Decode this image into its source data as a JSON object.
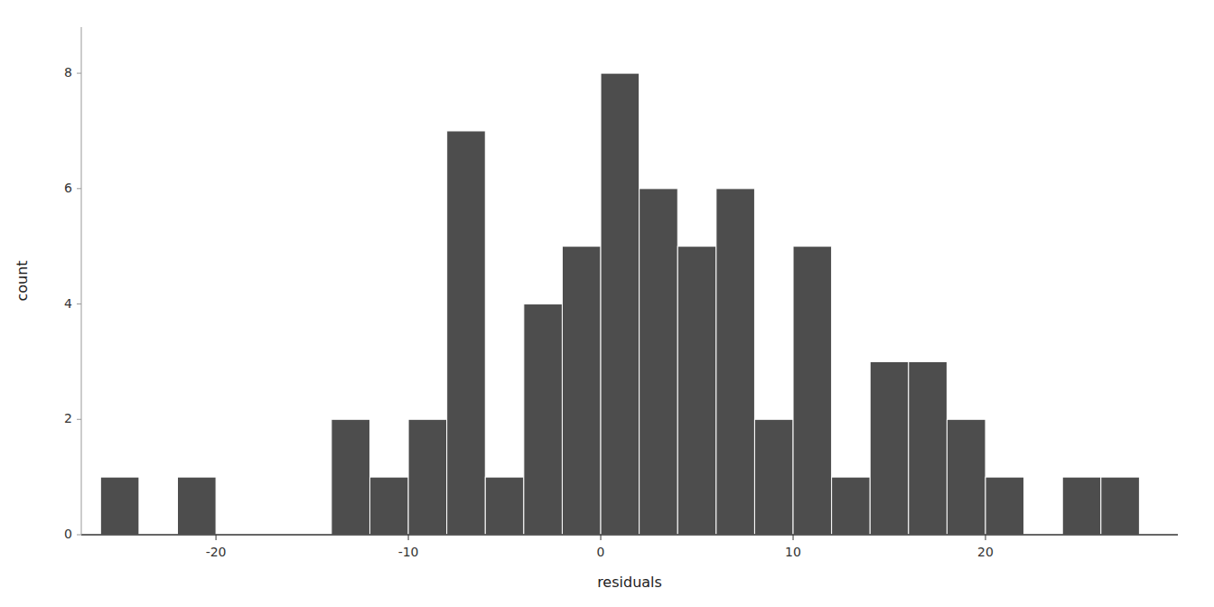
{
  "chart_data": {
    "type": "histogram",
    "xlabel": "residuals",
    "ylabel": "count",
    "color": "#4d4d4d",
    "bins": [
      -26,
      -24,
      -22,
      -20,
      -18,
      -16,
      -14,
      -12,
      -10,
      -8,
      -6,
      -4,
      -2,
      0,
      2,
      4,
      6,
      8,
      10,
      12,
      14,
      16,
      18,
      20,
      22,
      24,
      26,
      28,
      30
    ],
    "values": [
      1,
      0,
      1,
      0,
      0,
      0,
      2,
      1,
      2,
      7,
      1,
      4,
      5,
      8,
      6,
      5,
      6,
      2,
      5,
      1,
      3,
      3,
      2,
      1,
      0,
      1,
      1,
      0
    ],
    "xlim": [
      -27,
      30
    ],
    "ylim": [
      0,
      8.8
    ],
    "xticks": [
      -20,
      -10,
      0,
      10,
      20
    ],
    "yticks": [
      0,
      2,
      4,
      6,
      8
    ],
    "grid": false
  }
}
